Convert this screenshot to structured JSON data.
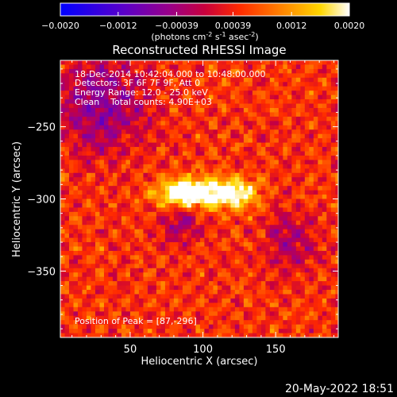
{
  "chart_data": {
    "type": "heatmap",
    "title": "Reconstructed RHESSI Image",
    "xlabel": "Heliocentric X (arcsec)",
    "ylabel": "Heliocentric Y (arcsec)",
    "xlim": [
      2,
      193
    ],
    "ylim": [
      -396,
      -204
    ],
    "x_ticks": [
      50,
      100,
      150
    ],
    "y_ticks": [
      -250,
      -300,
      -350
    ],
    "colorbar": {
      "ticks": [
        -0.002,
        -0.0012,
        -0.00039,
        0.00039,
        0.0012,
        0.002
      ],
      "tick_labels": [
        "-0.0020",
        "-0.0012",
        "-0.00039",
        "0.00039",
        "0.0012",
        "0.0020"
      ],
      "units_prefix": "(photons cm",
      "units_exp1": "-2",
      "units_mid1": " s",
      "units_exp2": "-1",
      "units_mid2": " asec",
      "units_exp3": "-2",
      "units_suffix": ")",
      "range": [
        -0.002,
        0.002
      ]
    },
    "annotations": {
      "time_range": "18-Dec-2014 10:42:04.000 to 10:48:00.000",
      "detectors": "Detectors: 3F 6F 7F 9F, Att 0",
      "energy": "Energy Range: 12.0 - 25.0 keV",
      "clean": "Clean    Total counts: 4.90E+03",
      "peak": "Position of Peak = [87,-296]"
    },
    "peak_position": [
      87,
      -296
    ],
    "peak_value": 0.002,
    "sources": [
      {
        "x": 87,
        "y": -296,
        "amplitude": 0.0021,
        "sigma_x": 13,
        "sigma_y": 7
      },
      {
        "x": 118,
        "y": -296,
        "amplitude": 0.0019,
        "sigma_x": 13,
        "sigma_y": 7
      }
    ],
    "background_level": 0.0005,
    "negative_regions": [
      {
        "x": 30,
        "y": -235,
        "amplitude": -0.0011,
        "sigma": 22
      },
      {
        "x": 85,
        "y": -318,
        "amplitude": -0.0009,
        "sigma": 10
      },
      {
        "x": 160,
        "y": -330,
        "amplitude": -0.0007,
        "sigma": 14
      }
    ]
  },
  "footer": {
    "timestamp": "20-May-2022 18:51"
  }
}
